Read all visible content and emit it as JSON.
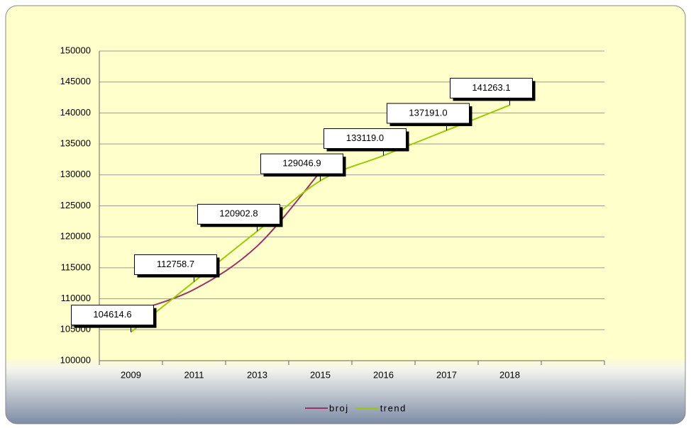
{
  "chart_data": {
    "type": "line",
    "categories": [
      "2009",
      "2011",
      "2013",
      "2015",
      "2016",
      "2017",
      "2018",
      null
    ],
    "series": [
      {
        "name": "broj",
        "color": "#993366",
        "values": [
          107800,
          111500,
          118500,
          130500,
          null,
          null,
          null,
          null
        ]
      },
      {
        "name": "trend",
        "color": "#99cc00",
        "values": [
          104614.6,
          112758.7,
          120902.8,
          129046.9,
          133119.0,
          137191.0,
          141263.1,
          null
        ],
        "value_labels": [
          "104614.6",
          "112758.7",
          "120902.8",
          "129046.9",
          "133119.0",
          "137191.0",
          "141263.1",
          null
        ]
      }
    ],
    "ylim": [
      100000,
      150000
    ],
    "yticks": [
      100000,
      105000,
      110000,
      115000,
      120000,
      125000,
      130000,
      135000,
      140000,
      145000,
      150000
    ],
    "grid": true,
    "legend": "bottom"
  }
}
